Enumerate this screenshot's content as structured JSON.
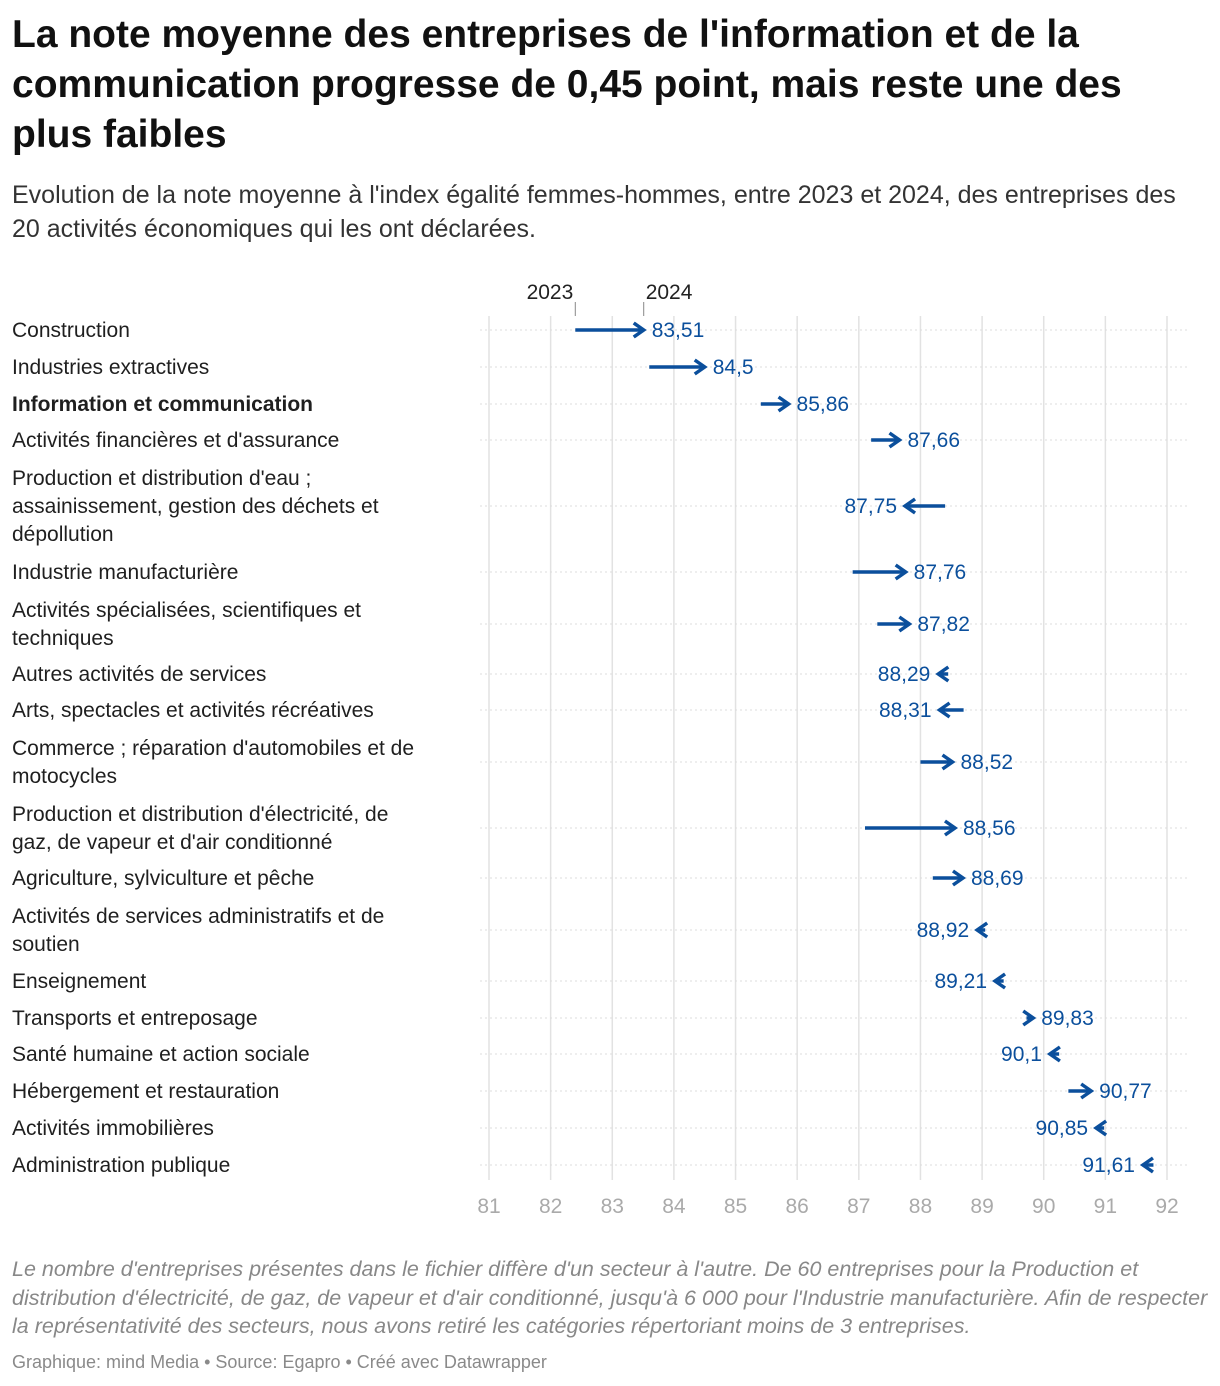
{
  "title": "La note moyenne des entreprises de l'information et de la communication progresse de 0,45 point, mais reste une des plus faibles",
  "subtitle": "Evolution de la note moyenne à l'index égalité femmes-hommes, entre 2023 et 2024, des entreprises des 20 activités économiques qui les ont déclarées.",
  "note": "Le nombre d'entreprises présentes dans le fichier diffère d'un secteur à l'autre. De 60 entreprises pour la Production et distribution d'électricité, de gaz, de vapeur et d'air conditionné, jusqu'à 6 000 pour l'Industrie manufacturière. Afin de respecter la représentativité des secteurs, nous avons retiré les catégories répertoriant moins de 3 entreprises.",
  "credits": "Graphique: mind Media • Source: Egapro • Créé avec Datawrapper",
  "colors": {
    "arrow": "#0b4f9c",
    "label": "#0b4f9c",
    "grid": "#e2e2e2",
    "axis_text": "#aaaaaa"
  },
  "chart_data": {
    "type": "arrow",
    "title": "La note moyenne des entreprises de l'information et de la communication progresse de 0,45 point, mais reste une des plus faibles",
    "legend": {
      "start_label": "2023",
      "end_label": "2024",
      "start_value": 82.4,
      "end_value": 83.51
    },
    "x_ticks": [
      81,
      82,
      83,
      84,
      85,
      86,
      87,
      88,
      89,
      90,
      91,
      92
    ],
    "xlim": [
      81,
      92
    ],
    "rows": [
      {
        "category": [
          "Construction"
        ],
        "bold": false,
        "v2023": 82.4,
        "v2024": 83.51,
        "label": "83,51"
      },
      {
        "category": [
          "Industries extractives"
        ],
        "bold": false,
        "v2023": 83.6,
        "v2024": 84.5,
        "label": "84,5"
      },
      {
        "category": [
          "Information et communication"
        ],
        "bold": true,
        "v2023": 85.41,
        "v2024": 85.86,
        "label": "85,86"
      },
      {
        "category": [
          "Activités financières et d'assurance"
        ],
        "bold": false,
        "v2023": 87.2,
        "v2024": 87.66,
        "label": "87,66"
      },
      {
        "category": [
          "Production et distribution d'eau ;",
          "assainissement, gestion des déchets et",
          "dépollution"
        ],
        "bold": false,
        "v2023": 88.4,
        "v2024": 87.75,
        "label": "87,75"
      },
      {
        "category": [
          "Industrie manufacturière"
        ],
        "bold": false,
        "v2023": 86.9,
        "v2024": 87.76,
        "label": "87,76"
      },
      {
        "category": [
          "Activités spécialisées, scientifiques et",
          "techniques"
        ],
        "bold": false,
        "v2023": 87.3,
        "v2024": 87.82,
        "label": "87,82"
      },
      {
        "category": [
          "Autres activités de services"
        ],
        "bold": false,
        "v2023": 88.45,
        "v2024": 88.29,
        "label": "88,29"
      },
      {
        "category": [
          "Arts, spectacles et activités récréatives"
        ],
        "bold": false,
        "v2023": 88.7,
        "v2024": 88.31,
        "label": "88,31"
      },
      {
        "category": [
          "Commerce ; réparation d'automobiles et de",
          "motocycles"
        ],
        "bold": false,
        "v2023": 88.0,
        "v2024": 88.52,
        "label": "88,52"
      },
      {
        "category": [
          "Production et distribution d'électricité, de",
          "gaz, de vapeur et d'air conditionné"
        ],
        "bold": false,
        "v2023": 87.1,
        "v2024": 88.56,
        "label": "88,56"
      },
      {
        "category": [
          "Agriculture, sylviculture et pêche"
        ],
        "bold": false,
        "v2023": 88.2,
        "v2024": 88.69,
        "label": "88,69"
      },
      {
        "category": [
          "Activités de services administratifs et de",
          "soutien"
        ],
        "bold": false,
        "v2023": 89.05,
        "v2024": 88.92,
        "label": "88,92"
      },
      {
        "category": [
          "Enseignement"
        ],
        "bold": false,
        "v2023": 89.35,
        "v2024": 89.21,
        "label": "89,21"
      },
      {
        "category": [
          "Transports et entreposage"
        ],
        "bold": false,
        "v2023": 89.72,
        "v2024": 89.83,
        "label": "89,83"
      },
      {
        "category": [
          "Santé humaine et action sociale"
        ],
        "bold": false,
        "v2023": 90.25,
        "v2024": 90.1,
        "label": "90,1"
      },
      {
        "category": [
          "Hébergement et restauration"
        ],
        "bold": false,
        "v2023": 90.4,
        "v2024": 90.77,
        "label": "90,77"
      },
      {
        "category": [
          "Activités immobilières"
        ],
        "bold": false,
        "v2023": 90.98,
        "v2024": 90.85,
        "label": "90,85"
      },
      {
        "category": [
          "Administration publique"
        ],
        "bold": false,
        "v2023": 91.78,
        "v2024": 91.61,
        "label": "91,61"
      }
    ]
  }
}
